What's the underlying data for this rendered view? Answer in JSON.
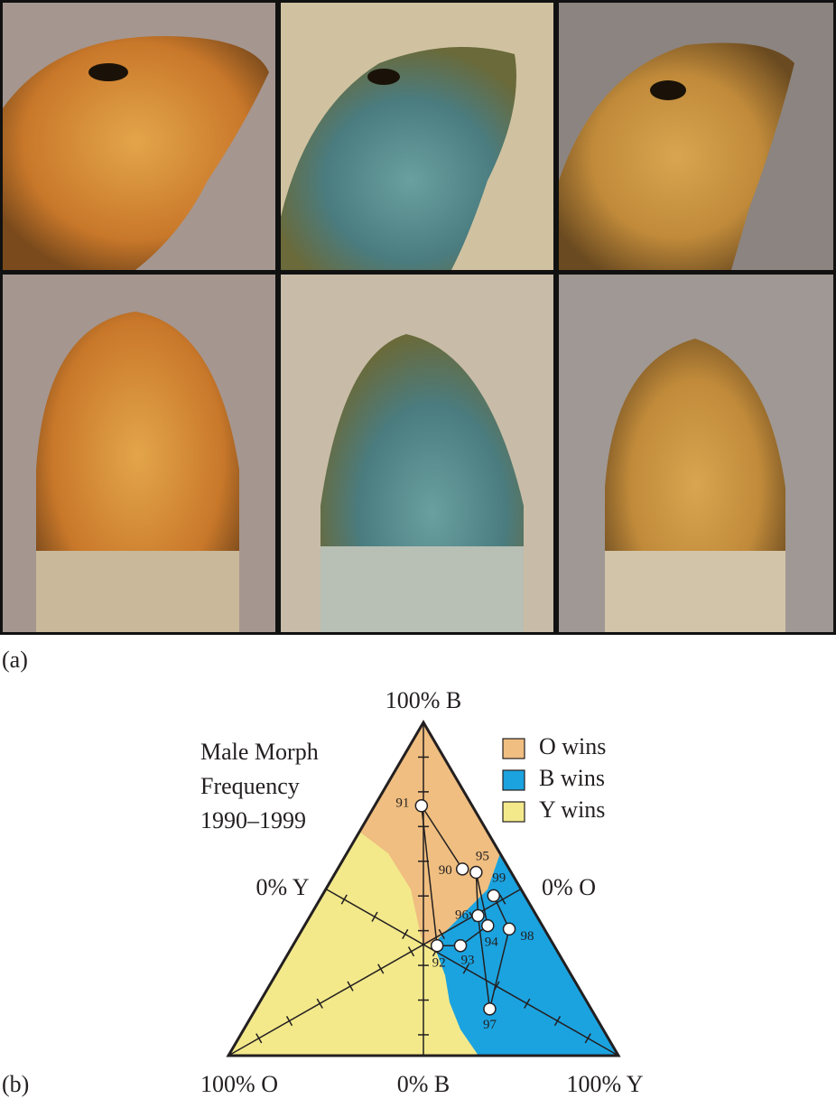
{
  "panel_a_label": "(a)",
  "panel_b_label": "(b)",
  "chart_data": {
    "type": "ternary",
    "title": [
      "Male Morph",
      "Frequency",
      "1990–1999"
    ],
    "vertex_labels": {
      "top": "100% B",
      "left": "100% O",
      "right": "100% Y"
    },
    "side_labels": {
      "left": "0% Y",
      "right": "0% O",
      "bottom": "0% B"
    },
    "legend": [
      {
        "name": "O wins",
        "color": "#efbe80"
      },
      {
        "name": "B wins",
        "color": "#1ba3e0"
      },
      {
        "name": "Y wins",
        "color": "#f3e98b"
      }
    ],
    "points": [
      {
        "label": "90",
        "B": 56,
        "Y": 32,
        "O": 12
      },
      {
        "label": "91",
        "B": 75,
        "Y": 12,
        "O": 13
      },
      {
        "label": "92",
        "B": 33,
        "Y": 37,
        "O": 30
      },
      {
        "label": "93",
        "B": 33,
        "Y": 43,
        "O": 24
      },
      {
        "label": "94",
        "B": 39,
        "Y": 47,
        "O": 14
      },
      {
        "label": "95",
        "B": 55,
        "Y": 36,
        "O": 9
      },
      {
        "label": "96",
        "B": 42,
        "Y": 43,
        "O": 15
      },
      {
        "label": "97",
        "B": 14,
        "Y": 60,
        "O": 26
      },
      {
        "label": "98",
        "B": 38,
        "Y": 53,
        "O": 9
      },
      {
        "label": "99",
        "B": 48,
        "Y": 44,
        "O": 8
      }
    ]
  }
}
